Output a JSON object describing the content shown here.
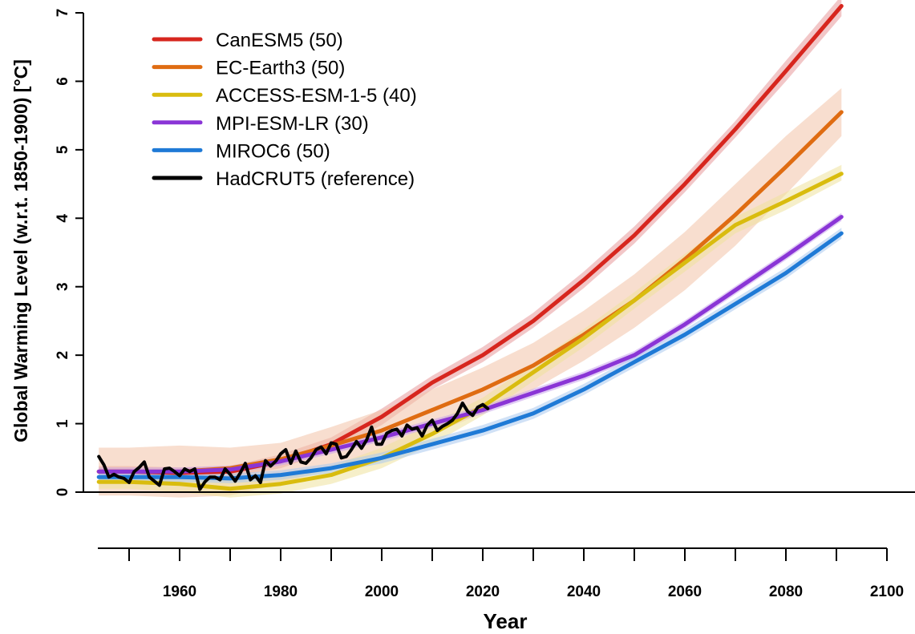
{
  "chart_data": {
    "type": "line",
    "title": "",
    "xlabel": "Year",
    "ylabel": "Global Warming Level (w.r.t. 1850-1900) [°C]",
    "xlim": [
      1944,
      2100
    ],
    "ylim": [
      0,
      7
    ],
    "x_ticks": [
      1960,
      1980,
      2000,
      2020,
      2040,
      2060,
      2080,
      2100
    ],
    "y_ticks": [
      0,
      1,
      2,
      3,
      4,
      5,
      6,
      7
    ],
    "grid": false,
    "legend_position": "top-left",
    "series": [
      {
        "name": "CanESM5 (50)",
        "color": "#d7261e",
        "band_color": "#e8999a",
        "x": [
          1944,
          1950,
          1960,
          1970,
          1980,
          1990,
          2000,
          2010,
          2020,
          2030,
          2040,
          2050,
          2060,
          2070,
          2080,
          2091
        ],
        "y": [
          0.3,
          0.3,
          0.28,
          0.3,
          0.45,
          0.7,
          1.1,
          1.6,
          2.0,
          2.5,
          3.1,
          3.75,
          4.5,
          5.3,
          6.15,
          7.1
        ],
        "lower": [
          0.22,
          0.22,
          0.2,
          0.22,
          0.35,
          0.6,
          0.98,
          1.5,
          1.9,
          2.4,
          2.98,
          3.63,
          4.38,
          5.18,
          6.0,
          6.95
        ],
        "upper": [
          0.38,
          0.38,
          0.36,
          0.38,
          0.55,
          0.8,
          1.22,
          1.7,
          2.12,
          2.62,
          3.22,
          3.88,
          4.62,
          5.42,
          6.3,
          7.25
        ]
      },
      {
        "name": "EC-Earth3 (50)",
        "color": "#df6c12",
        "band_color": "#f2c3a8",
        "x": [
          1944,
          1950,
          1960,
          1970,
          1980,
          1990,
          2000,
          2010,
          2020,
          2030,
          2040,
          2050,
          2060,
          2070,
          2080,
          2091
        ],
        "y": [
          0.3,
          0.3,
          0.3,
          0.35,
          0.48,
          0.68,
          0.9,
          1.2,
          1.5,
          1.85,
          2.3,
          2.8,
          3.4,
          4.05,
          4.75,
          5.55
        ],
        "lower": [
          -0.05,
          -0.05,
          -0.08,
          -0.05,
          0.12,
          0.35,
          0.55,
          0.85,
          1.15,
          1.5,
          1.92,
          2.4,
          2.95,
          3.6,
          4.35,
          5.2
        ],
        "upper": [
          0.65,
          0.65,
          0.68,
          0.65,
          0.72,
          0.95,
          1.2,
          1.5,
          1.82,
          2.18,
          2.65,
          3.18,
          3.8,
          4.5,
          5.2,
          5.9
        ]
      },
      {
        "name": "ACCESS-ESM-1-5 (40)",
        "color": "#d9bc0e",
        "band_color": "#efe19d",
        "x": [
          1944,
          1950,
          1960,
          1970,
          1980,
          1990,
          2000,
          2010,
          2020,
          2030,
          2040,
          2050,
          2060,
          2070,
          2080,
          2091
        ],
        "y": [
          0.15,
          0.15,
          0.12,
          0.05,
          0.12,
          0.25,
          0.5,
          0.85,
          1.25,
          1.75,
          2.25,
          2.8,
          3.35,
          3.9,
          4.25,
          4.65
        ],
        "lower": [
          0.05,
          0.05,
          0.0,
          -0.08,
          -0.02,
          0.12,
          0.35,
          0.7,
          1.12,
          1.62,
          2.12,
          2.68,
          3.22,
          3.78,
          4.12,
          4.55
        ],
        "upper": [
          0.25,
          0.25,
          0.25,
          0.18,
          0.25,
          0.38,
          0.65,
          1.0,
          1.38,
          1.88,
          2.38,
          2.92,
          3.48,
          4.02,
          4.38,
          4.78
        ]
      },
      {
        "name": "MPI-ESM-LR (30)",
        "color": "#8a35d6",
        "band_color": "#c9a3ec",
        "x": [
          1944,
          1950,
          1960,
          1970,
          1980,
          1990,
          2000,
          2010,
          2020,
          2030,
          2040,
          2050,
          2060,
          2070,
          2080,
          2091
        ],
        "y": [
          0.3,
          0.3,
          0.3,
          0.33,
          0.45,
          0.62,
          0.8,
          1.0,
          1.2,
          1.45,
          1.7,
          2.0,
          2.45,
          2.95,
          3.45,
          4.02
        ],
        "lower": [
          0.24,
          0.24,
          0.24,
          0.27,
          0.39,
          0.56,
          0.74,
          0.94,
          1.14,
          1.39,
          1.64,
          1.94,
          2.39,
          2.89,
          3.39,
          3.96
        ],
        "upper": [
          0.36,
          0.36,
          0.36,
          0.39,
          0.51,
          0.68,
          0.86,
          1.06,
          1.26,
          1.51,
          1.76,
          2.06,
          2.51,
          3.01,
          3.51,
          4.08
        ]
      },
      {
        "name": "MIROC6 (50)",
        "color": "#1f7ad6",
        "band_color": "#a9c9ef",
        "x": [
          1944,
          1950,
          1960,
          1970,
          1980,
          1990,
          2000,
          2010,
          2020,
          2030,
          2040,
          2050,
          2060,
          2070,
          2080,
          2091
        ],
        "y": [
          0.22,
          0.22,
          0.22,
          0.2,
          0.25,
          0.35,
          0.5,
          0.7,
          0.9,
          1.15,
          1.5,
          1.9,
          2.3,
          2.75,
          3.2,
          3.78
        ],
        "lower": [
          0.15,
          0.15,
          0.15,
          0.13,
          0.18,
          0.28,
          0.42,
          0.62,
          0.82,
          1.07,
          1.42,
          1.82,
          2.22,
          2.67,
          3.12,
          3.7
        ],
        "upper": [
          0.29,
          0.29,
          0.29,
          0.27,
          0.32,
          0.42,
          0.58,
          0.78,
          0.98,
          1.23,
          1.58,
          1.98,
          2.38,
          2.83,
          3.28,
          3.86
        ]
      },
      {
        "name": "HadCRUT5 (reference)",
        "color": "#000000",
        "x": [
          1944,
          1945,
          1946,
          1947,
          1948,
          1949,
          1950,
          1951,
          1952,
          1953,
          1954,
          1955,
          1956,
          1957,
          1958,
          1959,
          1960,
          1961,
          1962,
          1963,
          1964,
          1965,
          1966,
          1967,
          1968,
          1969,
          1970,
          1971,
          1972,
          1973,
          1974,
          1975,
          1976,
          1977,
          1978,
          1979,
          1980,
          1981,
          1982,
          1983,
          1984,
          1985,
          1986,
          1987,
          1988,
          1989,
          1990,
          1991,
          1992,
          1993,
          1994,
          1995,
          1996,
          1997,
          1998,
          1999,
          2000,
          2001,
          2002,
          2003,
          2004,
          2005,
          2006,
          2007,
          2008,
          2009,
          2010,
          2011,
          2012,
          2013,
          2014,
          2015,
          2016,
          2017,
          2018,
          2019,
          2020,
          2021
        ],
        "y": [
          0.52,
          0.4,
          0.22,
          0.26,
          0.22,
          0.2,
          0.14,
          0.3,
          0.36,
          0.44,
          0.22,
          0.16,
          0.1,
          0.34,
          0.35,
          0.3,
          0.24,
          0.34,
          0.3,
          0.34,
          0.04,
          0.15,
          0.22,
          0.22,
          0.18,
          0.34,
          0.26,
          0.16,
          0.28,
          0.42,
          0.18,
          0.24,
          0.14,
          0.46,
          0.38,
          0.45,
          0.56,
          0.62,
          0.42,
          0.6,
          0.44,
          0.42,
          0.5,
          0.62,
          0.66,
          0.56,
          0.72,
          0.7,
          0.5,
          0.52,
          0.62,
          0.74,
          0.64,
          0.76,
          0.95,
          0.7,
          0.7,
          0.86,
          0.9,
          0.92,
          0.82,
          0.98,
          0.92,
          0.94,
          0.82,
          0.98,
          1.05,
          0.9,
          0.96,
          1.0,
          1.05,
          1.15,
          1.3,
          1.18,
          1.12,
          1.24,
          1.28,
          1.22
        ]
      }
    ]
  }
}
